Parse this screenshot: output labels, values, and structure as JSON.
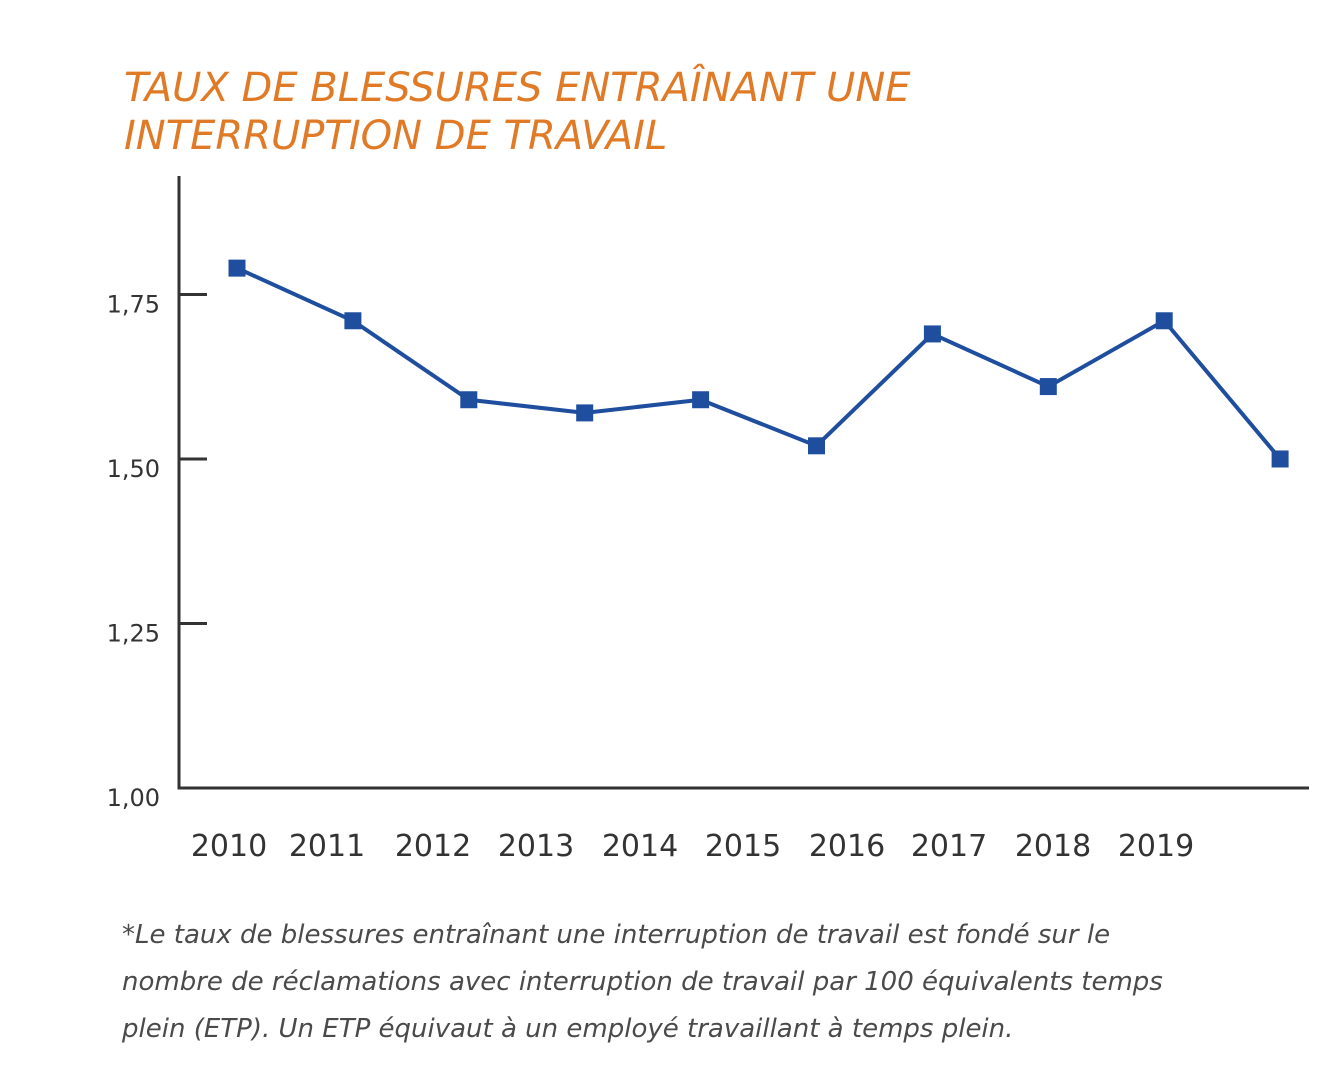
{
  "chart_data": {
    "type": "line",
    "title_lines": [
      "TAUX DE BLESSURES ENTRAÎNANT UNE",
      "INTERRUPTION DE TRAVAIL"
    ],
    "xlabel": "",
    "ylabel": "",
    "x_tick_labels": [
      "2010",
      "2011",
      "2012",
      "2013",
      "2014",
      "2015",
      "2016",
      "2017",
      "2018",
      "2019"
    ],
    "y_ticks": [
      1.0,
      1.25,
      1.5,
      1.75
    ],
    "y_tick_labels": [
      "1,00",
      "1,25",
      "1,50",
      "1,75"
    ],
    "ylim": [
      1.0,
      1.93
    ],
    "grid": false,
    "legend": "none",
    "series": [
      {
        "values": [
          1.79,
          1.71,
          1.59,
          1.57,
          1.59,
          1.52,
          1.69,
          1.61,
          1.71,
          1.5
        ],
        "color": "#1f4e9e"
      }
    ],
    "footnote_lines": [
      "*Le taux de blessures entraînant une interruption de travail est fondé sur le",
      "nombre de réclamations avec interruption de travail par 100 équivalents temps",
      "plein (ETP). Un ETP équivaut à un employé travaillant à temps plein."
    ],
    "colors": {
      "title": "#e07a26",
      "axis": "#333333",
      "line": "#1f4e9e",
      "text": "#333333",
      "footnote": "#4a4a4a"
    }
  }
}
